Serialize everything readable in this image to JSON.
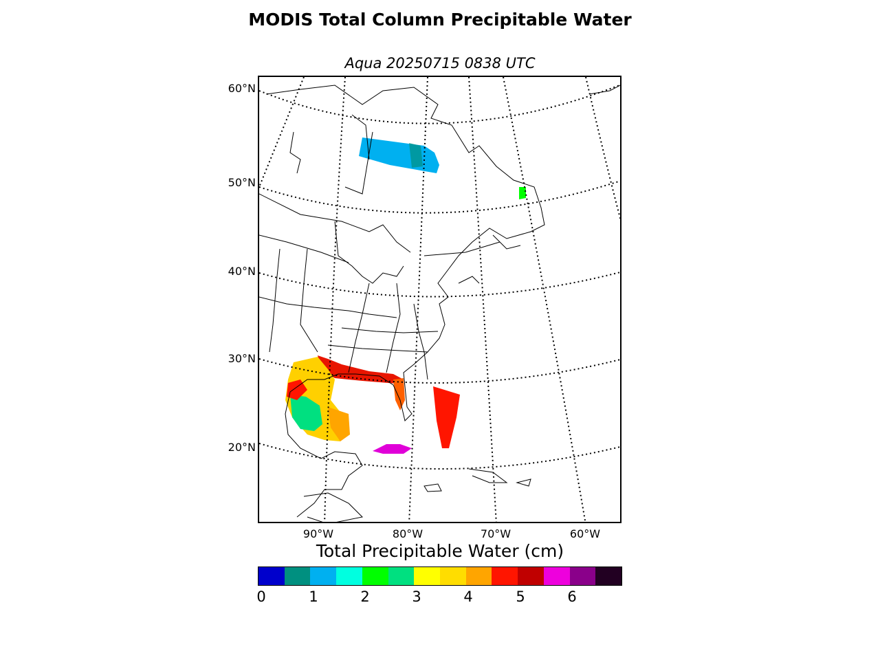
{
  "title": "MODIS Total Column Precipitable Water",
  "subtitle": "Aqua 20250715 0838 UTC",
  "map": {
    "projection": "conic",
    "lat_labels": [
      "60°N",
      "50°N",
      "40°N",
      "30°N",
      "20°N"
    ],
    "lon_labels": [
      "90°W",
      "80°W",
      "70°W",
      "60°W"
    ],
    "graticule": "dotted",
    "boundaries": [
      "coastlines",
      "countries",
      "states-provinces"
    ]
  },
  "colorbar": {
    "title": "Total Precipitable Water (cm)",
    "ticks": [
      "0",
      "1",
      "2",
      "3",
      "4",
      "5",
      "6"
    ],
    "range": [
      0,
      7
    ],
    "colors": [
      "#0000cc",
      "#009080",
      "#00b0f0",
      "#00ffe0",
      "#00ff00",
      "#00e080",
      "#ffff00",
      "#ffdd00",
      "#ffa500",
      "#ff1500",
      "#c00000",
      "#ee00dd",
      "#8a008a",
      "#220022"
    ]
  }
}
